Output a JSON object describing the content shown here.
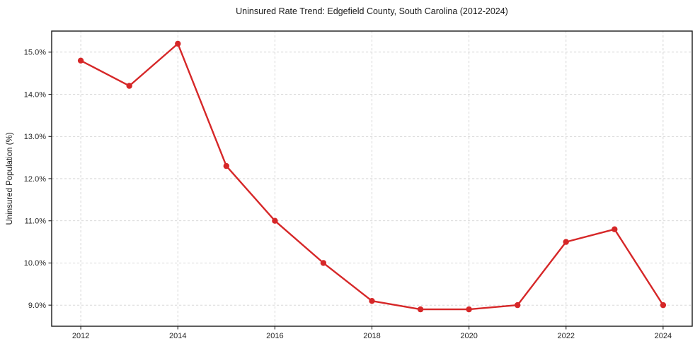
{
  "chart_data": {
    "type": "line",
    "title": "Uninsured Rate Trend: Edgefield County, South Carolina (2012-2024)",
    "xlabel": "",
    "ylabel": "Uninsured Population (%)",
    "x": [
      2012,
      2013,
      2014,
      2015,
      2016,
      2017,
      2018,
      2019,
      2020,
      2021,
      2022,
      2023,
      2024
    ],
    "values": [
      14.8,
      14.2,
      15.2,
      12.3,
      11.0,
      10.0,
      9.1,
      8.9,
      8.9,
      9.0,
      10.5,
      10.8,
      9.0
    ],
    "x_ticks": [
      2012,
      2014,
      2016,
      2018,
      2020,
      2022,
      2024
    ],
    "x_tick_labels": [
      "2012",
      "2014",
      "2016",
      "2018",
      "2020",
      "2022",
      "2024"
    ],
    "y_ticks": [
      9,
      10,
      11,
      12,
      13,
      14,
      15
    ],
    "y_tick_labels": [
      "9.0%",
      "10.0%",
      "11.0%",
      "12.0%",
      "13.0%",
      "14.0%",
      "15.0%"
    ],
    "xlim": [
      2011.4,
      2024.6
    ],
    "ylim": [
      8.5,
      15.5
    ],
    "grid": "dashed",
    "legend": "none",
    "line_color": "#d62728",
    "marker": "circle",
    "grid_color": "#d2d2d2",
    "spine_color": "#1a1a1a",
    "background_color": "#ffffff"
  }
}
